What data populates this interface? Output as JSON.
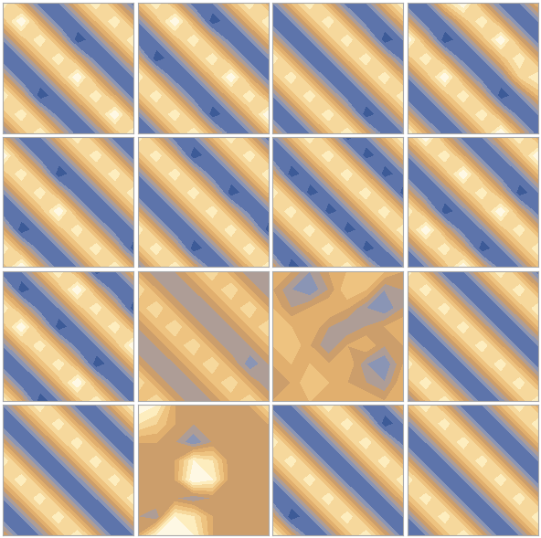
{
  "chart_data": [
    {
      "type": "contour",
      "tick_labels": false,
      "cells": [
        [
          9,
          5,
          1,
          2,
          6,
          9,
          5,
          1
        ],
        [
          6,
          10,
          5,
          1,
          2,
          6,
          9,
          5
        ],
        [
          2,
          6,
          9,
          5,
          0,
          2,
          6,
          9
        ],
        [
          1,
          2,
          6,
          9,
          5,
          1,
          2,
          6
        ],
        [
          5,
          1,
          2,
          6,
          10,
          5,
          1,
          2
        ],
        [
          9,
          5,
          0,
          2,
          6,
          9,
          5,
          1
        ],
        [
          6,
          9,
          5,
          1,
          2,
          6,
          10,
          5
        ],
        [
          2,
          6,
          9,
          5,
          1,
          2,
          6,
          9
        ]
      ]
    },
    {
      "type": "contour",
      "tick_labels": false,
      "cells": [
        [
          6,
          9,
          5,
          1,
          2,
          6,
          9,
          5
        ],
        [
          2,
          6,
          10,
          5,
          0,
          2,
          6,
          9
        ],
        [
          1,
          2,
          6,
          9,
          5,
          1,
          2,
          6
        ],
        [
          5,
          0,
          2,
          6,
          9,
          5,
          1,
          2
        ],
        [
          9,
          5,
          1,
          2,
          6,
          10,
          5,
          1
        ],
        [
          6,
          9,
          5,
          1,
          2,
          6,
          9,
          5
        ],
        [
          2,
          6,
          9,
          5,
          0,
          2,
          6,
          10
        ],
        [
          1,
          2,
          6,
          9,
          5,
          1,
          2,
          6
        ]
      ]
    },
    {
      "type": "contour",
      "tick_labels": false,
      "cells": [
        [
          2,
          6,
          9,
          5,
          1,
          2,
          6,
          9
        ],
        [
          1,
          2,
          6,
          9,
          5,
          1,
          2,
          6
        ],
        [
          5,
          1,
          2,
          6,
          9,
          5,
          0,
          2
        ],
        [
          9,
          5,
          1,
          2,
          6,
          9,
          5,
          1
        ],
        [
          6,
          9,
          5,
          1,
          2,
          6,
          9,
          5
        ],
        [
          2,
          6,
          9,
          5,
          1,
          2,
          6,
          9
        ],
        [
          1,
          2,
          6,
          9,
          5,
          0,
          2,
          6
        ],
        [
          5,
          1,
          2,
          6,
          9,
          5,
          1,
          2
        ]
      ]
    },
    {
      "type": "contour",
      "tick_labels": false,
      "cells": [
        [
          1,
          2,
          7,
          10,
          5,
          1,
          2,
          6
        ],
        [
          5,
          1,
          2,
          6,
          9,
          5,
          1,
          2
        ],
        [
          10,
          5,
          0,
          2,
          6,
          10,
          5,
          1
        ],
        [
          6,
          9,
          5,
          1,
          2,
          6,
          9,
          5
        ],
        [
          2,
          6,
          10,
          5,
          1,
          2,
          7,
          9
        ],
        [
          1,
          2,
          6,
          9,
          5,
          0,
          2,
          6
        ],
        [
          5,
          1,
          2,
          6,
          9,
          5,
          1,
          2
        ],
        [
          9,
          5,
          1,
          2,
          6,
          10,
          5,
          1
        ]
      ]
    },
    {
      "type": "contour",
      "tick_labels": false,
      "cells": [
        [
          5,
          1,
          2,
          6,
          9,
          5,
          1,
          2
        ],
        [
          10,
          5,
          1,
          2,
          6,
          9,
          5,
          1
        ],
        [
          6,
          9,
          5,
          0,
          2,
          6,
          9,
          5
        ],
        [
          2,
          6,
          9,
          5,
          1,
          2,
          6,
          9
        ],
        [
          1,
          2,
          6,
          10,
          5,
          1,
          2,
          6
        ],
        [
          5,
          0,
          2,
          6,
          9,
          5,
          1,
          2
        ],
        [
          9,
          5,
          1,
          2,
          6,
          9,
          5,
          0
        ],
        [
          6,
          10,
          5,
          1,
          2,
          6,
          9,
          5
        ]
      ]
    },
    {
      "type": "contour",
      "tick_labels": false,
      "cells": [
        [
          9,
          5,
          1,
          2,
          6,
          9,
          5,
          1
        ],
        [
          6,
          9,
          5,
          0,
          2,
          6,
          9,
          5
        ],
        [
          2,
          6,
          9,
          5,
          1,
          2,
          6,
          9
        ],
        [
          1,
          2,
          6,
          9,
          5,
          0,
          2,
          6
        ],
        [
          5,
          1,
          2,
          6,
          9,
          5,
          1,
          2
        ],
        [
          9,
          5,
          1,
          2,
          6,
          9,
          5,
          0
        ],
        [
          6,
          9,
          5,
          0,
          2,
          6,
          9,
          5
        ],
        [
          2,
          6,
          9,
          5,
          1,
          2,
          6,
          9
        ]
      ]
    },
    {
      "type": "contour",
      "tick_labels": false,
      "cells": [
        [
          2,
          6,
          9,
          5,
          0,
          2,
          6,
          9
        ],
        [
          1,
          2,
          6,
          9,
          5,
          0,
          2,
          6
        ],
        [
          5,
          0,
          2,
          6,
          9,
          5,
          0,
          2
        ],
        [
          9,
          5,
          0,
          2,
          6,
          9,
          5,
          0
        ],
        [
          6,
          9,
          5,
          0,
          2,
          6,
          9,
          5
        ],
        [
          2,
          6,
          9,
          5,
          0,
          2,
          6,
          9
        ],
        [
          1,
          2,
          6,
          9,
          5,
          0,
          2,
          6
        ],
        [
          5,
          0,
          2,
          6,
          9,
          5,
          1,
          2
        ]
      ]
    },
    {
      "type": "contour",
      "tick_labels": false,
      "cells": [
        [
          6,
          10,
          5,
          1,
          2,
          6,
          9,
          5
        ],
        [
          2,
          6,
          9,
          5,
          1,
          2,
          6,
          10
        ],
        [
          1,
          2,
          6,
          10,
          5,
          1,
          2,
          6
        ],
        [
          5,
          1,
          2,
          6,
          9,
          5,
          0,
          2
        ],
        [
          9,
          5,
          0,
          2,
          6,
          10,
          5,
          1
        ],
        [
          6,
          10,
          5,
          1,
          2,
          6,
          9,
          5
        ],
        [
          2,
          6,
          9,
          5,
          0,
          2,
          6,
          9
        ],
        [
          1,
          2,
          6,
          10,
          5,
          1,
          2,
          6
        ]
      ]
    },
    {
      "type": "contour",
      "tick_labels": false,
      "cells": [
        [
          1,
          2,
          6,
          9,
          5,
          0,
          2,
          6
        ],
        [
          5,
          0,
          2,
          6,
          10,
          5,
          1,
          2
        ],
        [
          9,
          5,
          1,
          2,
          6,
          9,
          5,
          0
        ],
        [
          6,
          10,
          5,
          0,
          2,
          6,
          9,
          5
        ],
        [
          2,
          6,
          9,
          5,
          1,
          2,
          6,
          10
        ],
        [
          1,
          2,
          6,
          9,
          5,
          0,
          2,
          6
        ],
        [
          5,
          1,
          2,
          6,
          10,
          5,
          1,
          2
        ],
        [
          9,
          5,
          0,
          2,
          6,
          9,
          5,
          1
        ]
      ]
    },
    {
      "type": "contour",
      "tick_labels": false,
      "cells": [
        [
          5,
          3,
          4,
          6,
          8,
          5,
          3,
          4
        ],
        [
          8,
          5,
          3,
          4,
          6,
          8,
          5,
          3
        ],
        [
          6,
          8,
          5,
          3,
          4,
          6,
          8,
          5
        ],
        [
          4,
          6,
          8,
          5,
          3,
          4,
          6,
          8
        ],
        [
          3,
          4,
          6,
          8,
          5,
          3,
          4,
          6
        ],
        [
          5,
          3,
          4,
          6,
          8,
          5,
          2,
          4
        ],
        [
          8,
          5,
          3,
          4,
          6,
          8,
          5,
          3
        ],
        [
          6,
          8,
          5,
          3,
          4,
          6,
          8,
          5
        ]
      ]
    },
    {
      "type": "contour",
      "tick_labels": false,
      "cells": [
        [
          6,
          5,
          3,
          5,
          6,
          7,
          6,
          5
        ],
        [
          5,
          3,
          2,
          4,
          7,
          6,
          3,
          4
        ],
        [
          6,
          4,
          5,
          6,
          5,
          3,
          2,
          4
        ],
        [
          7,
          6,
          6,
          4,
          3,
          4,
          5,
          6
        ],
        [
          6,
          7,
          5,
          3,
          5,
          6,
          4,
          5
        ],
        [
          5,
          6,
          6,
          5,
          6,
          3,
          2,
          5
        ],
        [
          4,
          5,
          7,
          6,
          5,
          4,
          3,
          6
        ],
        [
          5,
          6,
          6,
          5,
          6,
          6,
          5,
          6
        ]
      ]
    },
    {
      "type": "contour",
      "tick_labels": false,
      "cells": [
        [
          9,
          5,
          1,
          2,
          6,
          9,
          5,
          1
        ],
        [
          6,
          9,
          5,
          1,
          2,
          6,
          9,
          5
        ],
        [
          2,
          6,
          9,
          5,
          1,
          2,
          6,
          9
        ],
        [
          1,
          2,
          6,
          9,
          5,
          1,
          2,
          6
        ],
        [
          5,
          1,
          2,
          6,
          9,
          5,
          1,
          2
        ],
        [
          9,
          5,
          1,
          2,
          6,
          9,
          5,
          1
        ],
        [
          6,
          9,
          5,
          1,
          2,
          6,
          9,
          5
        ],
        [
          2,
          6,
          9,
          5,
          1,
          2,
          6,
          9
        ]
      ]
    },
    {
      "type": "contour",
      "tick_labels": false,
      "cells": [
        [
          2,
          6,
          9,
          5,
          1,
          2,
          6,
          9
        ],
        [
          1,
          2,
          6,
          9,
          5,
          1,
          2,
          6
        ],
        [
          5,
          1,
          2,
          6,
          9,
          5,
          1,
          2
        ],
        [
          9,
          5,
          1,
          2,
          6,
          9,
          5,
          1
        ],
        [
          6,
          9,
          5,
          1,
          2,
          6,
          9,
          5
        ],
        [
          2,
          6,
          9,
          5,
          1,
          2,
          6,
          9
        ],
        [
          1,
          2,
          6,
          9,
          5,
          1,
          2,
          6
        ],
        [
          5,
          1,
          2,
          6,
          9,
          5,
          1,
          2
        ]
      ]
    },
    {
      "type": "contour",
      "tick_labels": false,
      "cells": [
        [
          10,
          9,
          5,
          4,
          5,
          5,
          5,
          8
        ],
        [
          8,
          7,
          5,
          4,
          5,
          5,
          5,
          5
        ],
        [
          5,
          5,
          4,
          2,
          4,
          5,
          5,
          5
        ],
        [
          5,
          4,
          5,
          9,
          8,
          4,
          5,
          5
        ],
        [
          5,
          4,
          5,
          10,
          9,
          4,
          5,
          5
        ],
        [
          5,
          5,
          4,
          3,
          4,
          5,
          5,
          5
        ],
        [
          4,
          3,
          9,
          8,
          5,
          5,
          5,
          5
        ],
        [
          5,
          9,
          10,
          9,
          5,
          5,
          5,
          5
        ]
      ]
    },
    {
      "type": "contour",
      "tick_labels": false,
      "cells": [
        [
          1,
          2,
          6,
          9,
          5,
          1,
          2,
          6
        ],
        [
          5,
          1,
          2,
          6,
          9,
          5,
          0,
          2
        ],
        [
          9,
          5,
          1,
          2,
          6,
          9,
          5,
          1
        ],
        [
          6,
          9,
          5,
          1,
          2,
          6,
          9,
          5
        ],
        [
          2,
          6,
          9,
          5,
          1,
          2,
          6,
          9
        ],
        [
          1,
          2,
          6,
          9,
          5,
          1,
          2,
          6
        ],
        [
          5,
          0,
          2,
          6,
          9,
          5,
          1,
          2
        ],
        [
          9,
          5,
          1,
          2,
          6,
          9,
          5,
          1
        ]
      ]
    },
    {
      "type": "contour",
      "tick_labels": false,
      "cells": [
        [
          6,
          9,
          5,
          1,
          2,
          6,
          9,
          5
        ],
        [
          2,
          6,
          9,
          5,
          1,
          2,
          6,
          9
        ],
        [
          1,
          2,
          6,
          9,
          5,
          1,
          2,
          6
        ],
        [
          5,
          1,
          2,
          6,
          9,
          5,
          1,
          2
        ],
        [
          9,
          5,
          1,
          2,
          6,
          9,
          5,
          1
        ],
        [
          6,
          9,
          5,
          1,
          2,
          6,
          9,
          5
        ],
        [
          2,
          6,
          9,
          5,
          1,
          2,
          6,
          9
        ],
        [
          1,
          2,
          6,
          9,
          5,
          1,
          2,
          6
        ]
      ]
    }
  ]
}
